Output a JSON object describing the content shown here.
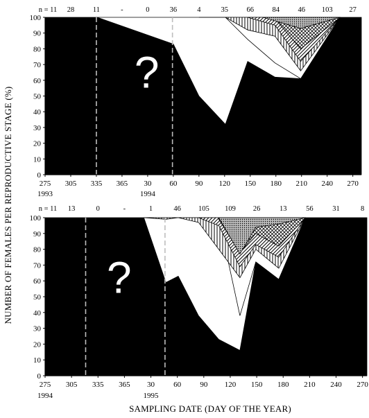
{
  "y_axis_title": "NUMBER OF FEMALES PER REPRODUCTIVE STAGE (%)",
  "x_axis_title": "SAMPLING DATE (DAY OF THE YEAR)",
  "chart_data": [
    {
      "type": "area",
      "panel": "top",
      "n_prefix": "n = ",
      "sample_sizes": [
        {
          "x": 275,
          "label": "11"
        },
        {
          "x": 305,
          "label": "28"
        },
        {
          "x": 335,
          "label": "11"
        },
        {
          "x": 365,
          "label": "-"
        },
        {
          "x": 395,
          "label": "0"
        },
        {
          "x": 425,
          "label": "36"
        },
        {
          "x": 455,
          "label": "4"
        },
        {
          "x": 485,
          "label": "35"
        },
        {
          "x": 515,
          "label": "66"
        },
        {
          "x": 545,
          "label": "84"
        },
        {
          "x": 575,
          "label": "46"
        },
        {
          "x": 605,
          "label": "103"
        },
        {
          "x": 635,
          "label": "27"
        }
      ],
      "x_ticks": [
        {
          "x": 275,
          "label": "275"
        },
        {
          "x": 305,
          "label": "305"
        },
        {
          "x": 335,
          "label": "335"
        },
        {
          "x": 365,
          "label": "365"
        },
        {
          "x": 395,
          "label": "30"
        },
        {
          "x": 425,
          "label": "60"
        },
        {
          "x": 455,
          "label": "90"
        },
        {
          "x": 485,
          "label": "120"
        },
        {
          "x": 515,
          "label": "150"
        },
        {
          "x": 545,
          "label": "180"
        },
        {
          "x": 575,
          "label": "210"
        },
        {
          "x": 605,
          "label": "240"
        },
        {
          "x": 635,
          "label": "270"
        }
      ],
      "year_labels": [
        {
          "x": 275,
          "label": "1993"
        },
        {
          "x": 395,
          "label": "1994"
        }
      ],
      "xlim": [
        275,
        645
      ],
      "ylim": [
        0,
        100
      ],
      "y_ticks": [
        0,
        10,
        20,
        30,
        40,
        50,
        60,
        70,
        80,
        90,
        100
      ],
      "dashed_lines_x": [
        335,
        424
      ],
      "unknown_marker": "?",
      "unknown_marker_x": 394,
      "unknown_marker_y": 65,
      "series": [
        {
          "fill": "black",
          "points": [
            [
              275,
              100
            ],
            [
              336,
              100
            ],
            [
              425,
              83
            ],
            [
              455,
              50
            ],
            [
              486,
              32
            ],
            [
              512,
              72
            ],
            [
              544,
              62
            ],
            [
              574,
              61
            ],
            [
              620,
              100
            ],
            [
              645,
              100
            ]
          ]
        },
        {
          "fill": "white",
          "points": [
            [
              336,
              100
            ],
            [
              425,
              100
            ],
            [
              455,
              100
            ],
            [
              486,
              100
            ],
            [
              512,
              86
            ],
            [
              544,
              71
            ],
            [
              574,
              61
            ],
            [
              620,
              100
            ]
          ]
        },
        {
          "fill": "vertical",
          "points": [
            [
              455,
              100
            ],
            [
              486,
              100
            ],
            [
              512,
              92
            ],
            [
              544,
              88
            ],
            [
              574,
              66
            ],
            [
              620,
              100
            ]
          ]
        },
        {
          "fill": "diagonal",
          "points": [
            [
              512,
              100
            ],
            [
              544,
              95
            ],
            [
              574,
              72
            ],
            [
              620,
              100
            ]
          ]
        },
        {
          "fill": "crosshatch",
          "points": [
            [
              544,
              99
            ],
            [
              574,
              80
            ],
            [
              620,
              100
            ]
          ]
        },
        {
          "fill": "dots",
          "points": [
            [
              530,
              100
            ],
            [
              574,
              93
            ],
            [
              620,
              100
            ]
          ]
        }
      ]
    },
    {
      "type": "area",
      "panel": "bottom",
      "n_prefix": "n = ",
      "sample_sizes": [
        {
          "x": 275,
          "label": "11"
        },
        {
          "x": 305,
          "label": "13"
        },
        {
          "x": 335,
          "label": "0"
        },
        {
          "x": 365,
          "label": "-"
        },
        {
          "x": 395,
          "label": "1"
        },
        {
          "x": 425,
          "label": "46"
        },
        {
          "x": 455,
          "label": "105"
        },
        {
          "x": 485,
          "label": "109"
        },
        {
          "x": 515,
          "label": "26"
        },
        {
          "x": 545,
          "label": "13"
        },
        {
          "x": 575,
          "label": "56"
        },
        {
          "x": 605,
          "label": "31"
        },
        {
          "x": 635,
          "label": "8"
        }
      ],
      "x_ticks": [
        {
          "x": 275,
          "label": "275"
        },
        {
          "x": 305,
          "label": "305"
        },
        {
          "x": 335,
          "label": "335"
        },
        {
          "x": 365,
          "label": "365"
        },
        {
          "x": 395,
          "label": "30"
        },
        {
          "x": 425,
          "label": "60"
        },
        {
          "x": 455,
          "label": "90"
        },
        {
          "x": 485,
          "label": "120"
        },
        {
          "x": 515,
          "label": "150"
        },
        {
          "x": 545,
          "label": "180"
        },
        {
          "x": 575,
          "label": "210"
        },
        {
          "x": 605,
          "label": "240"
        },
        {
          "x": 635,
          "label": "270"
        }
      ],
      "year_labels": [
        {
          "x": 275,
          "label": "1994"
        },
        {
          "x": 395,
          "label": "1995"
        }
      ],
      "xlim": [
        275,
        640
      ],
      "ylim": [
        0,
        100
      ],
      "y_ticks": [
        0,
        10,
        20,
        30,
        40,
        50,
        60,
        70,
        80,
        90,
        100
      ],
      "dashed_lines_x": [
        321,
        411
      ],
      "unknown_marker": "?",
      "unknown_marker_x": 359,
      "unknown_marker_y": 62,
      "series": [
        {
          "fill": "black",
          "points": [
            [
              275,
              100
            ],
            [
              387,
              100
            ],
            [
              412,
              59
            ],
            [
              426,
              63
            ],
            [
              449,
              38
            ],
            [
              472,
              23
            ],
            [
              496,
              16
            ],
            [
              514,
              72
            ],
            [
              540,
              61
            ],
            [
              570,
              100
            ],
            [
              640,
              100
            ]
          ]
        },
        {
          "fill": "white",
          "points": [
            [
              387,
              100
            ],
            [
              412,
              100
            ],
            [
              449,
              100
            ],
            [
              472,
              100
            ],
            [
              496,
              38
            ],
            [
              514,
              72
            ],
            [
              540,
              61
            ],
            [
              570,
              100
            ]
          ]
        },
        {
          "fill": "vertical",
          "points": [
            [
              387,
              100
            ],
            [
              412,
              99
            ],
            [
              426,
              100
            ],
            [
              449,
              97
            ],
            [
              472,
              80
            ],
            [
              496,
              62
            ],
            [
              514,
              80
            ],
            [
              540,
              68
            ],
            [
              570,
              100
            ]
          ]
        },
        {
          "fill": "diagonal",
          "points": [
            [
              449,
              100
            ],
            [
              472,
              95
            ],
            [
              496,
              69
            ],
            [
              514,
              83
            ],
            [
              540,
              75
            ],
            [
              570,
              100
            ]
          ]
        },
        {
          "fill": "crosshatch",
          "points": [
            [
              472,
              99
            ],
            [
              496,
              78
            ],
            [
              514,
              90
            ],
            [
              540,
              82
            ],
            [
              570,
              100
            ]
          ]
        },
        {
          "fill": "dots",
          "points": [
            [
              472,
              100
            ],
            [
              496,
              77
            ],
            [
              514,
              94
            ],
            [
              540,
              96
            ],
            [
              570,
              100
            ]
          ]
        }
      ]
    }
  ]
}
